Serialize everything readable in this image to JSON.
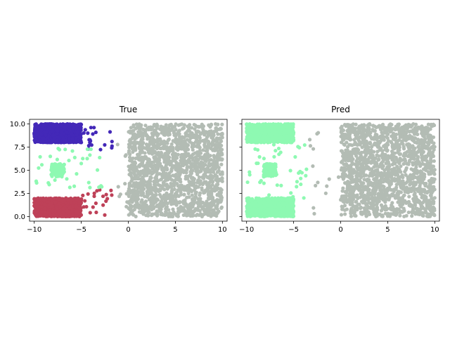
{
  "chart_data": [
    {
      "type": "scatter",
      "title": "True",
      "xlabel": "",
      "ylabel": "",
      "xlim": [
        -10.5,
        10.5
      ],
      "ylim": [
        -0.5,
        10.5
      ],
      "xticks": [
        -10,
        -5,
        0,
        5,
        10
      ],
      "xtick_labels": [
        "−10",
        "−5",
        "0",
        "5",
        "10"
      ],
      "yticks": [
        0.0,
        2.5,
        5.0,
        7.5,
        10.0
      ],
      "ytick_labels": [
        "0.0",
        "2.5",
        "5.0",
        "7.5",
        "10.0"
      ],
      "grid": false,
      "legend": "none",
      "clusters": [
        {
          "color": "#4328b8",
          "region": {
            "x": [
              -10,
              -5
            ],
            "y": [
              8.0,
              10.0
            ]
          },
          "count": 900
        },
        {
          "color": "#4328b8",
          "region": {
            "x": [
              -5,
              -1
            ],
            "y": [
              7.0,
              10.0
            ]
          },
          "count": 20
        },
        {
          "color": "#be4158",
          "region": {
            "x": [
              -10,
              -5
            ],
            "y": [
              0.0,
              2.0
            ]
          },
          "count": 900
        },
        {
          "color": "#be4158",
          "region": {
            "x": [
              -5,
              -1.5
            ],
            "y": [
              0.0,
              3.0
            ]
          },
          "count": 22
        },
        {
          "color": "#8ef9b2",
          "region": {
            "x": [
              -8.2,
              -6.8
            ],
            "y": [
              4.3,
              5.7
            ]
          },
          "count": 120
        },
        {
          "color": "#8ef9b2",
          "region": {
            "x": [
              -10,
              -2.5
            ],
            "y": [
              3.0,
              7.5
            ]
          },
          "count": 35
        },
        {
          "color": "#b3bcb4",
          "region": {
            "x": [
              0.0,
              10.0
            ],
            "y": [
              0.0,
              10.0
            ]
          },
          "count": 1700
        },
        {
          "color": "#b3bcb4",
          "region": {
            "x": [
              -1.2,
              0.0
            ],
            "y": [
              0.0,
              10.0
            ]
          },
          "count": 10
        }
      ]
    },
    {
      "type": "scatter",
      "title": "Pred",
      "xlabel": "",
      "ylabel": "",
      "xlim": [
        -10.5,
        10.5
      ],
      "ylim": [
        -0.5,
        10.5
      ],
      "xticks": [
        -10,
        -5,
        0,
        5,
        10
      ],
      "xtick_labels": [
        "−10",
        "−5",
        "0",
        "5",
        "10"
      ],
      "yticks": [
        0.0,
        2.5,
        5.0,
        7.5,
        10.0
      ],
      "ytick_labels": [],
      "grid": false,
      "legend": "none",
      "clusters": [
        {
          "color": "#8ef9b2",
          "region": {
            "x": [
              -10,
              -5
            ],
            "y": [
              8.0,
              10.0
            ]
          },
          "count": 900
        },
        {
          "color": "#8ef9b2",
          "region": {
            "x": [
              -10,
              -5
            ],
            "y": [
              0.0,
              2.0
            ]
          },
          "count": 900
        },
        {
          "color": "#8ef9b2",
          "region": {
            "x": [
              -8.2,
              -6.8
            ],
            "y": [
              4.3,
              5.7
            ]
          },
          "count": 120
        },
        {
          "color": "#8ef9b2",
          "region": {
            "x": [
              -10,
              -3.5
            ],
            "y": [
              2.0,
              8.0
            ]
          },
          "count": 40
        },
        {
          "color": "#b3bcb4",
          "region": {
            "x": [
              0.0,
              10.0
            ],
            "y": [
              0.0,
              10.0
            ]
          },
          "count": 1700
        },
        {
          "color": "#b3bcb4",
          "region": {
            "x": [
              -3.5,
              0.0
            ],
            "y": [
              0.0,
              9.5
            ]
          },
          "count": 14
        }
      ]
    }
  ]
}
